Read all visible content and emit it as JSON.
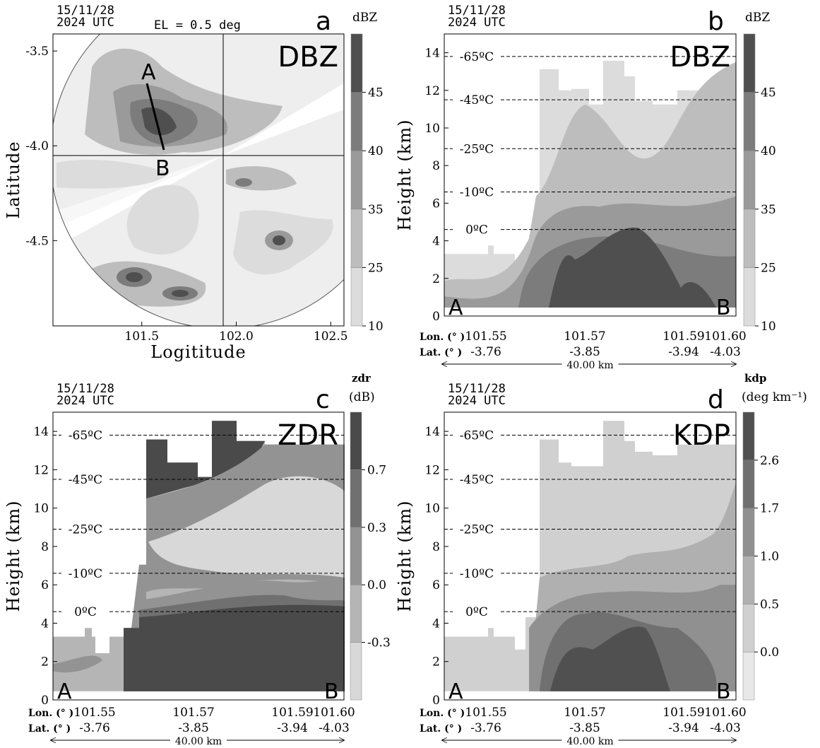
{
  "chart_data": [
    {
      "type": "contour_map",
      "date": "15/11/28",
      "time": "2024 UTC",
      "elevation": "EL =  0.5 deg",
      "panel_label": "a",
      "field": "DBZ",
      "section_labels": [
        "A",
        "B"
      ],
      "colorbar_label": "dBZ",
      "colorbar_colors": [
        "#dcdcdc",
        "#bdbdbd",
        "#9a9a9a",
        "#7c7c7c",
        "#4f4f4f"
      ],
      "colorbar_ticks": [
        10,
        25,
        35,
        40,
        45
      ],
      "xlabel": "Logititude",
      "ylabel": "Latitude",
      "xlim": [
        101.03,
        102.57
      ],
      "xticks": [
        101.5,
        {
          "value": 102,
          "label": "102.0"
        },
        102.5
      ],
      "ylim": [
        -4.95,
        -3.41
      ],
      "yticks": [
        -3.5,
        {
          "value": -4,
          "label": "-4.0"
        },
        -4.5
      ]
    },
    {
      "type": "cross_section",
      "date": "15/11/28",
      "time": "2024 UTC",
      "panel_label": "b",
      "field": "DBZ",
      "section_labels": [
        "A",
        "B"
      ],
      "colorbar_label": "dBZ",
      "colorbar_colors": [
        "#dcdcdc",
        "#bdbdbd",
        "#9a9a9a",
        "#7c7c7c",
        "#4f4f4f"
      ],
      "colorbar_ticks": [
        10,
        25,
        35,
        40,
        45
      ],
      "ylabel": "Height (km)",
      "ylim": [
        0,
        15
      ],
      "yticks": [
        0,
        2,
        4,
        6,
        8,
        10,
        12,
        14
      ],
      "isotherms": [
        {
          "value": 13.8,
          "label": "-65ºC"
        },
        {
          "value": 11.5,
          "label": "-45ºC"
        },
        {
          "value": 8.9,
          "label": "-25ºC"
        },
        {
          "value": 6.6,
          "label": "-10ºC"
        },
        {
          "value": 4.6,
          "label": "0ºC"
        }
      ],
      "lon_label": "Lon. (°  )",
      "lon_ticks": [
        "101.55",
        "101.57",
        "101.59",
        "101.60"
      ],
      "lat_label": "Lat. (°  )",
      "lat_ticks": [
        "-3.76",
        "-3.85",
        "-3.94",
        "-4.03"
      ],
      "distance": "40.00 km"
    },
    {
      "type": "cross_section",
      "date": "15/11/28",
      "time": "2024 UTC",
      "panel_label": "c",
      "field": "ZDR",
      "section_labels": [
        "A",
        "B"
      ],
      "colorbar_label": "zdr",
      "colorbar_unit": "(dB)",
      "colorbar_colors": [
        "#d8d8d8",
        "#b5b5b5",
        "#939393",
        "#707070",
        "#4a4a4a"
      ],
      "colorbar_ticks": [
        -0.3,
        {
          "value": 0,
          "label": "0.0"
        },
        0.3,
        0.7
      ],
      "ylabel": "Height (km)",
      "ylim": [
        0,
        15
      ],
      "yticks": [
        0,
        2,
        4,
        6,
        8,
        10,
        12,
        14
      ],
      "isotherms": [
        {
          "value": 13.8,
          "label": "-65ºC"
        },
        {
          "value": 11.5,
          "label": "-45ºC"
        },
        {
          "value": 8.9,
          "label": "-25ºC"
        },
        {
          "value": 6.6,
          "label": "-10ºC"
        },
        {
          "value": 4.6,
          "label": "0ºC"
        }
      ],
      "lon_label": "Lon. (°  )",
      "lon_ticks": [
        "101.55",
        "101.57",
        "101.59",
        "101.60"
      ],
      "lat_label": "Lat. (°  )",
      "lat_ticks": [
        "-3.76",
        "-3.85",
        "-3.94",
        "-4.03"
      ],
      "distance": "40.00 km"
    },
    {
      "type": "cross_section",
      "date": "15/11/28",
      "time": "2024 UTC",
      "panel_label": "d",
      "field": "KDP",
      "section_labels": [
        "A",
        "B"
      ],
      "colorbar_label": "kdp",
      "colorbar_unit": "(deg km⁻¹)",
      "colorbar_colors": [
        "#e8e8e8",
        "#d0d0d0",
        "#b0b0b0",
        "#909090",
        "#707070",
        "#505050"
      ],
      "colorbar_ticks": [
        {
          "value": 0,
          "label": "0.0"
        },
        0.5,
        {
          "value": 1,
          "label": "1.0"
        },
        1.7,
        2.6
      ],
      "ylabel": "Height (km)",
      "ylim": [
        0,
        15
      ],
      "yticks": [
        0,
        2,
        4,
        6,
        8,
        10,
        12,
        14
      ],
      "isotherms": [
        {
          "value": 13.8,
          "label": "-65ºC"
        },
        {
          "value": 11.5,
          "label": "-45ºC"
        },
        {
          "value": 8.9,
          "label": "-25ºC"
        },
        {
          "value": 6.6,
          "label": "-10ºC"
        },
        {
          "value": 4.6,
          "label": "0ºC"
        }
      ],
      "lon_label": "Lon. (°  )",
      "lon_ticks": [
        "101.55",
        "101.57",
        "101.59",
        "101.60"
      ],
      "lat_label": "Lat. (°  )",
      "lat_ticks": [
        "-3.76",
        "-3.85",
        "-3.94",
        "-4.03"
      ],
      "distance": "40.00 km"
    }
  ]
}
